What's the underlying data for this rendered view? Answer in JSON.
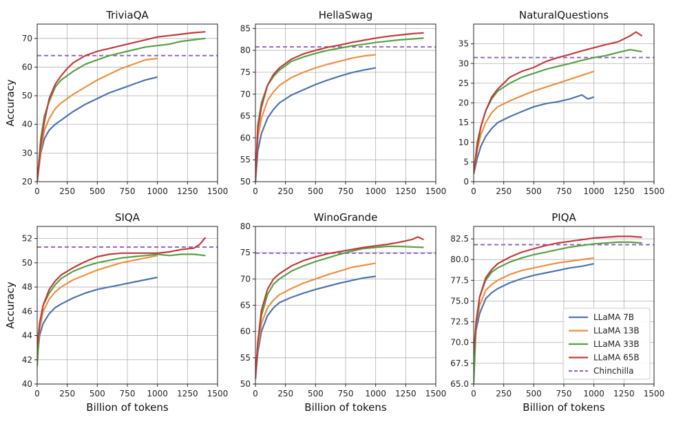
{
  "chart_data": [
    {
      "type": "line",
      "title": "TriviaQA",
      "xlabel": "",
      "ylabel": "Accuracy",
      "xlim": [
        0,
        1500
      ],
      "ylim": [
        20,
        75
      ],
      "xticks": [
        0,
        250,
        500,
        750,
        1000,
        1250,
        1500
      ],
      "yticks": [
        20,
        30,
        40,
        50,
        60,
        70
      ],
      "grid": true,
      "chinchilla": 64.0,
      "series": [
        {
          "name": "LLaMA 7B",
          "x": [
            0,
            30,
            60,
            100,
            150,
            200,
            250,
            300,
            400,
            500,
            600,
            700,
            800,
            900,
            1000
          ],
          "y": [
            20,
            30,
            35,
            38,
            40,
            41.5,
            43,
            44.5,
            47,
            49,
            51,
            52.5,
            54,
            55.5,
            56.5
          ]
        },
        {
          "name": "LLaMA 13B",
          "x": [
            0,
            30,
            60,
            100,
            150,
            200,
            250,
            300,
            400,
            500,
            600,
            700,
            800,
            900,
            1000
          ],
          "y": [
            20,
            31,
            38,
            42,
            45.5,
            47.5,
            49,
            50.5,
            53,
            55.5,
            57.5,
            59.5,
            61,
            62.5,
            63
          ]
        },
        {
          "name": "LLaMA 33B",
          "x": [
            0,
            30,
            60,
            100,
            150,
            200,
            250,
            300,
            400,
            500,
            600,
            700,
            800,
            900,
            1000,
            1100,
            1200,
            1300,
            1400
          ],
          "y": [
            20,
            35,
            43,
            48,
            53,
            55.5,
            57,
            58.5,
            61,
            62.5,
            64,
            65,
            66,
            67,
            67.5,
            68,
            69,
            69.5,
            70
          ]
        },
        {
          "name": "LLaMA 65B",
          "x": [
            0,
            30,
            60,
            100,
            150,
            200,
            250,
            300,
            400,
            500,
            600,
            700,
            800,
            900,
            1000,
            1100,
            1200,
            1300,
            1400
          ],
          "y": [
            20,
            33,
            41,
            49,
            54,
            57,
            59.5,
            61.5,
            64,
            65.5,
            66.5,
            67.5,
            68.5,
            69.5,
            70.5,
            71,
            71.5,
            72,
            72.3
          ]
        }
      ]
    },
    {
      "type": "line",
      "title": "HellaSwag",
      "xlabel": "",
      "ylabel": "",
      "xlim": [
        0,
        1500
      ],
      "ylim": [
        50,
        86
      ],
      "xticks": [
        0,
        250,
        500,
        750,
        1000,
        1250,
        1500
      ],
      "yticks": [
        50,
        55,
        60,
        65,
        70,
        75,
        80,
        85
      ],
      "grid": true,
      "chinchilla": 80.8,
      "series": [
        {
          "name": "LLaMA 7B",
          "x": [
            0,
            20,
            50,
            100,
            150,
            200,
            300,
            400,
            500,
            600,
            700,
            800,
            900,
            1000
          ],
          "y": [
            50,
            57,
            61,
            64.5,
            66.5,
            68,
            69.8,
            71,
            72.2,
            73.2,
            74.1,
            74.9,
            75.5,
            76
          ]
        },
        {
          "name": "LLaMA 13B",
          "x": [
            0,
            20,
            50,
            100,
            150,
            200,
            300,
            400,
            500,
            600,
            700,
            800,
            900,
            1000
          ],
          "y": [
            50,
            60,
            64.5,
            68.5,
            70.5,
            72,
            73.8,
            75,
            76,
            76.8,
            77.5,
            78.2,
            78.7,
            79
          ]
        },
        {
          "name": "LLaMA 33B",
          "x": [
            0,
            20,
            50,
            100,
            150,
            200,
            300,
            400,
            500,
            600,
            700,
            800,
            900,
            1000,
            1100,
            1200,
            1300,
            1400
          ],
          "y": [
            50,
            63,
            68,
            72,
            74,
            75.5,
            77.5,
            78.5,
            79.3,
            80,
            80.5,
            81,
            81.4,
            81.8,
            82.1,
            82.4,
            82.6,
            82.8
          ]
        },
        {
          "name": "LLaMA 65B",
          "x": [
            0,
            20,
            50,
            100,
            150,
            200,
            300,
            400,
            500,
            600,
            700,
            800,
            900,
            1000,
            1100,
            1200,
            1300,
            1400
          ],
          "y": [
            50,
            62,
            67,
            72,
            74.5,
            76,
            78,
            79.2,
            80,
            80.7,
            81.2,
            81.8,
            82.3,
            82.8,
            83.2,
            83.5,
            83.8,
            84
          ]
        }
      ]
    },
    {
      "type": "line",
      "title": "NaturalQuestions",
      "xlabel": "",
      "ylabel": "",
      "xlim": [
        0,
        1500
      ],
      "ylim": [
        0,
        40
      ],
      "xticks": [
        0,
        250,
        500,
        750,
        1000,
        1250,
        1500
      ],
      "yticks": [
        0,
        5,
        10,
        15,
        20,
        25,
        30,
        35
      ],
      "grid": true,
      "chinchilla": 31.5,
      "series": [
        {
          "name": "LLaMA 7B",
          "x": [
            0,
            30,
            60,
            100,
            150,
            200,
            300,
            400,
            500,
            600,
            700,
            800,
            900,
            950,
            1000
          ],
          "y": [
            2,
            6,
            9,
            11.5,
            13.5,
            15,
            16.5,
            17.8,
            19,
            19.8,
            20.3,
            21,
            22,
            21,
            21.5
          ]
        },
        {
          "name": "LLaMA 13B",
          "x": [
            0,
            30,
            60,
            100,
            150,
            200,
            300,
            400,
            500,
            600,
            700,
            800,
            900,
            1000
          ],
          "y": [
            2,
            8,
            12,
            15,
            17.5,
            19,
            20.5,
            21.8,
            23,
            24,
            25,
            26,
            27,
            28
          ]
        },
        {
          "name": "LLaMA 33B",
          "x": [
            0,
            30,
            60,
            100,
            150,
            200,
            300,
            400,
            500,
            600,
            700,
            800,
            900,
            1000,
            1100,
            1200,
            1300,
            1400
          ],
          "y": [
            2,
            10,
            14,
            18,
            21,
            23,
            25,
            26.5,
            27.5,
            28.5,
            29.3,
            30,
            30.8,
            31.5,
            32,
            32.8,
            33.5,
            33
          ]
        },
        {
          "name": "LLaMA 65B",
          "x": [
            0,
            30,
            60,
            100,
            150,
            200,
            300,
            400,
            500,
            600,
            700,
            800,
            900,
            1000,
            1100,
            1200,
            1300,
            1350,
            1400
          ],
          "y": [
            2,
            9,
            14,
            18,
            21.5,
            23.5,
            26.5,
            28,
            29,
            30.5,
            31.5,
            32.3,
            33.2,
            34,
            34.8,
            35.5,
            37,
            38,
            37
          ]
        }
      ]
    },
    {
      "type": "line",
      "title": "SIQA",
      "xlabel": "Billion of tokens",
      "ylabel": "Accuracy",
      "xlim": [
        0,
        1500
      ],
      "ylim": [
        40,
        53
      ],
      "xticks": [
        0,
        250,
        500,
        750,
        1000,
        1250,
        1500
      ],
      "yticks": [
        40,
        42,
        44,
        46,
        48,
        50,
        52
      ],
      "grid": true,
      "chinchilla": 51.3,
      "series": [
        {
          "name": "LLaMA 7B",
          "x": [
            0,
            20,
            50,
            100,
            150,
            200,
            300,
            400,
            500,
            600,
            700,
            800,
            900,
            1000
          ],
          "y": [
            42,
            44,
            45,
            45.8,
            46.3,
            46.6,
            47.1,
            47.5,
            47.8,
            48,
            48.2,
            48.4,
            48.6,
            48.8
          ]
        },
        {
          "name": "LLaMA 13B",
          "x": [
            0,
            20,
            50,
            100,
            150,
            200,
            300,
            400,
            500,
            600,
            700,
            800,
            900,
            1000
          ],
          "y": [
            41.5,
            44.5,
            46,
            47,
            47.6,
            48,
            48.6,
            49,
            49.4,
            49.7,
            50,
            50.2,
            50.4,
            50.6
          ]
        },
        {
          "name": "LLaMA 33B",
          "x": [
            0,
            20,
            50,
            100,
            150,
            200,
            300,
            400,
            500,
            600,
            700,
            800,
            900,
            1000,
            1100,
            1200,
            1300,
            1400
          ],
          "y": [
            41.5,
            45,
            46.5,
            47.5,
            48.2,
            48.7,
            49.3,
            49.7,
            50,
            50.2,
            50.4,
            50.5,
            50.6,
            50.7,
            50.6,
            50.7,
            50.7,
            50.6
          ]
        },
        {
          "name": "LLaMA 65B",
          "x": [
            0,
            20,
            50,
            100,
            150,
            200,
            300,
            400,
            500,
            600,
            700,
            800,
            900,
            1000,
            1100,
            1200,
            1300,
            1350,
            1400
          ],
          "y": [
            43,
            45,
            46.5,
            47.8,
            48.5,
            49,
            49.6,
            50.1,
            50.5,
            50.7,
            50.8,
            50.8,
            50.8,
            50.8,
            50.9,
            51.1,
            51.2,
            51.5,
            52.1
          ]
        }
      ]
    },
    {
      "type": "line",
      "title": "WinoGrande",
      "xlabel": "Billion of tokens",
      "ylabel": "",
      "xlim": [
        0,
        1500
      ],
      "ylim": [
        50,
        80
      ],
      "xticks": [
        0,
        250,
        500,
        750,
        1000,
        1250,
        1500
      ],
      "yticks": [
        50,
        55,
        60,
        65,
        70,
        75,
        80
      ],
      "grid": true,
      "chinchilla": 74.9,
      "series": [
        {
          "name": "LLaMA 7B",
          "x": [
            0,
            20,
            50,
            100,
            150,
            200,
            300,
            400,
            500,
            600,
            700,
            800,
            900,
            1000
          ],
          "y": [
            51,
            56,
            60,
            63,
            64.5,
            65.5,
            66.5,
            67.3,
            68,
            68.6,
            69.2,
            69.7,
            70.2,
            70.5
          ]
        },
        {
          "name": "LLaMA 13B",
          "x": [
            0,
            20,
            50,
            100,
            150,
            200,
            300,
            400,
            500,
            600,
            700,
            800,
            900,
            1000
          ],
          "y": [
            51,
            57,
            61.5,
            64.5,
            66,
            67,
            68.2,
            69.2,
            70,
            70.8,
            71.5,
            72.2,
            72.6,
            73
          ]
        },
        {
          "name": "LLaMA 33B",
          "x": [
            0,
            20,
            50,
            100,
            150,
            200,
            300,
            400,
            500,
            600,
            700,
            800,
            900,
            1000,
            1100,
            1200,
            1300,
            1400
          ],
          "y": [
            51,
            58,
            63,
            67,
            69,
            70,
            71.5,
            72.5,
            73.3,
            74,
            74.7,
            75.3,
            75.8,
            76,
            76.2,
            76.2,
            76.1,
            76
          ]
        },
        {
          "name": "LLaMA 65B",
          "x": [
            0,
            20,
            50,
            100,
            150,
            200,
            300,
            400,
            500,
            600,
            700,
            800,
            900,
            1000,
            1100,
            1200,
            1300,
            1350,
            1400
          ],
          "y": [
            51,
            58,
            64,
            68,
            70,
            71,
            72.5,
            73.5,
            74.2,
            74.8,
            75.2,
            75.6,
            76,
            76.3,
            76.6,
            77,
            77.5,
            78,
            77.5
          ]
        }
      ]
    },
    {
      "type": "line",
      "title": "PIQA",
      "xlabel": "Billion of tokens",
      "ylabel": "",
      "xlim": [
        0,
        1500
      ],
      "ylim": [
        65,
        84
      ],
      "xticks": [
        0,
        250,
        500,
        750,
        1000,
        1250,
        1500
      ],
      "yticks": [
        65.0,
        67.5,
        70.0,
        72.5,
        75.0,
        77.5,
        80.0,
        82.5
      ],
      "ytick_labels": [
        "65.0",
        "67.5",
        "70.0",
        "72.5",
        "75.0",
        "77.5",
        "80.0",
        "82.5"
      ],
      "grid": true,
      "chinchilla": 81.8,
      "series": [
        {
          "name": "LLaMA 7B",
          "x": [
            0,
            20,
            50,
            100,
            150,
            200,
            300,
            400,
            500,
            600,
            700,
            800,
            900,
            1000
          ],
          "y": [
            68,
            71.5,
            73.5,
            75.3,
            76,
            76.5,
            77.2,
            77.7,
            78.1,
            78.4,
            78.7,
            79,
            79.2,
            79.5
          ]
        },
        {
          "name": "LLaMA 13B",
          "x": [
            0,
            20,
            50,
            100,
            150,
            200,
            300,
            400,
            500,
            600,
            700,
            800,
            900,
            1000
          ],
          "y": [
            68,
            72,
            74.5,
            76.3,
            77,
            77.5,
            78.2,
            78.7,
            79,
            79.3,
            79.6,
            79.8,
            80,
            80.2
          ]
        },
        {
          "name": "LLaMA 33B",
          "x": [
            0,
            20,
            50,
            100,
            150,
            200,
            300,
            400,
            500,
            600,
            700,
            800,
            900,
            1000,
            1100,
            1200,
            1300,
            1400
          ],
          "y": [
            65,
            72,
            75.5,
            77.5,
            78.5,
            79,
            79.7,
            80.2,
            80.6,
            80.9,
            81.2,
            81.5,
            81.7,
            81.9,
            82,
            82.1,
            82.1,
            82
          ]
        },
        {
          "name": "LLaMA 65B",
          "x": [
            0,
            20,
            50,
            100,
            150,
            200,
            300,
            400,
            500,
            600,
            700,
            800,
            900,
            1000,
            1100,
            1200,
            1300,
            1400
          ],
          "y": [
            68.5,
            72.5,
            75.5,
            77.8,
            78.8,
            79.5,
            80.3,
            80.9,
            81.3,
            81.7,
            82,
            82.2,
            82.4,
            82.6,
            82.7,
            82.8,
            82.8,
            82.7
          ]
        }
      ]
    }
  ],
  "legend": {
    "location": "lower-right",
    "entries": [
      {
        "label": "LLaMA 7B",
        "color": "#4c72b0",
        "style": "solid"
      },
      {
        "label": "LLaMA 13B",
        "color": "#ec8f3f",
        "style": "solid"
      },
      {
        "label": "LLaMA 33B",
        "color": "#55a045",
        "style": "solid"
      },
      {
        "label": "LLaMA 65B",
        "color": "#c03b3b",
        "style": "solid"
      },
      {
        "label": "Chinchilla",
        "color": "#9467bd",
        "style": "dashed"
      }
    ]
  },
  "colors": {
    "LLaMA 7B": "#4c72b0",
    "LLaMA 13B": "#ec8f3f",
    "LLaMA 33B": "#55a045",
    "LLaMA 65B": "#c03b3b",
    "Chinchilla": "#9467bd"
  }
}
